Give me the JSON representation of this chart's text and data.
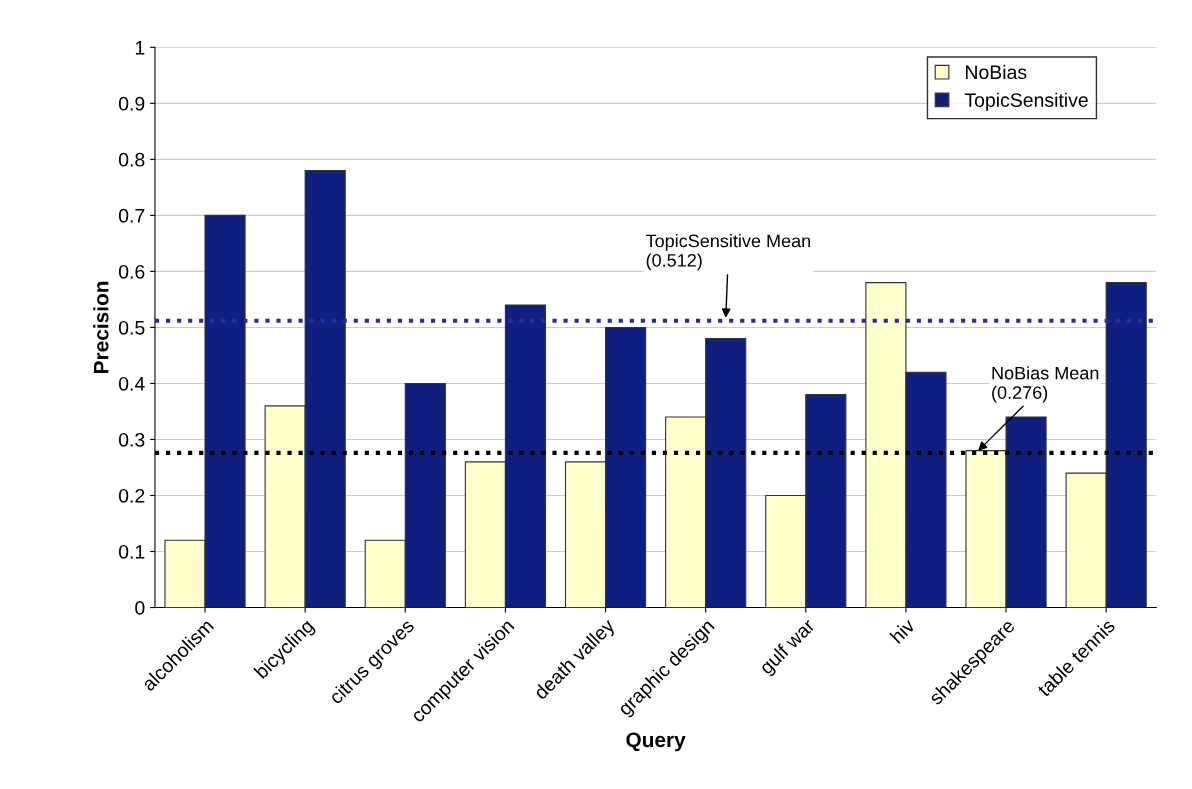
{
  "chart_data": {
    "type": "bar",
    "xlabel": "Query",
    "ylabel": "Precision",
    "categories": [
      "alcoholism",
      "bicycling",
      "citrus groves",
      "computer vision",
      "death valley",
      "graphic design",
      "gulf war",
      "hiv",
      "shakespeare",
      "table tennis"
    ],
    "series": [
      {
        "name": "NoBias",
        "color": "#ffffcc",
        "values": [
          0.12,
          0.36,
          0.12,
          0.26,
          0.26,
          0.34,
          0.2,
          0.58,
          0.28,
          0.24
        ]
      },
      {
        "name": "TopicSensitive",
        "color": "#0f1f80",
        "values": [
          0.7,
          0.78,
          0.4,
          0.54,
          0.5,
          0.48,
          0.38,
          0.42,
          0.34,
          0.58
        ]
      }
    ],
    "ylim": [
      0,
      1
    ],
    "yticks": [
      0,
      0.1,
      0.2,
      0.3,
      0.4,
      0.5,
      0.6,
      0.7,
      0.8,
      0.9,
      1
    ],
    "ref_lines": [
      {
        "axis": "y",
        "value": 0.512,
        "label": "TopicSensitive Mean\n(0.512)",
        "color": "#2a2aa0",
        "line_style": "dotted"
      },
      {
        "axis": "y",
        "value": 0.276,
        "label": "NoBias Mean\n(0.276)",
        "color": "#000000",
        "line_style": "dotted"
      }
    ],
    "grid": "y",
    "legend": "top right"
  }
}
